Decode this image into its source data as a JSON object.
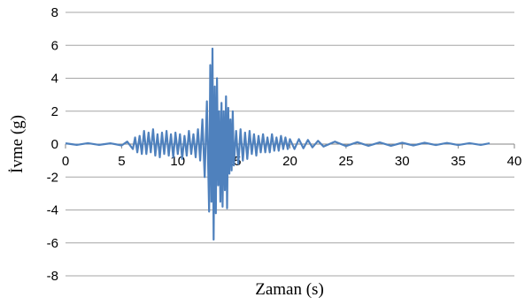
{
  "chart_data": {
    "type": "line",
    "title": "",
    "xlabel": "Zaman (s)",
    "ylabel": "İvme (g)",
    "xlim": [
      0,
      40
    ],
    "ylim": [
      -8,
      8
    ],
    "xticks": [
      0,
      5,
      10,
      15,
      20,
      25,
      30,
      35,
      40
    ],
    "yticks": [
      -8,
      -6,
      -4,
      -2,
      0,
      2,
      4,
      6,
      8
    ],
    "xtick_labels": [
      "0",
      "5",
      "10",
      "15",
      "20",
      "25",
      "30",
      "35",
      "40"
    ],
    "ytick_labels": [
      "-8",
      "-6",
      "-4",
      "-2",
      "0",
      "2",
      "4",
      "6",
      "8"
    ],
    "grid": "horizontal",
    "legend": "none",
    "series": [
      {
        "color": "#4F81BD",
        "x": [
          0,
          1,
          2,
          3,
          4,
          5,
          5.5,
          6,
          6.2,
          6.4,
          6.6,
          6.8,
          7.0,
          7.2,
          7.4,
          7.6,
          7.8,
          8.0,
          8.2,
          8.4,
          8.6,
          8.8,
          9.0,
          9.2,
          9.4,
          9.6,
          9.8,
          10.0,
          10.2,
          10.4,
          10.6,
          10.8,
          11.0,
          11.2,
          11.4,
          11.6,
          11.8,
          12.0,
          12.2,
          12.4,
          12.6,
          12.8,
          12.9,
          13.0,
          13.1,
          13.2,
          13.3,
          13.4,
          13.5,
          13.6,
          13.7,
          13.8,
          13.9,
          14.0,
          14.1,
          14.2,
          14.3,
          14.4,
          14.5,
          14.6,
          14.7,
          14.8,
          14.9,
          15.0,
          15.2,
          15.4,
          15.6,
          15.8,
          16.0,
          16.2,
          16.4,
          16.6,
          16.8,
          17.0,
          17.2,
          17.4,
          17.6,
          17.8,
          18.0,
          18.2,
          18.4,
          18.6,
          18.8,
          19.0,
          19.2,
          19.4,
          19.6,
          19.8,
          20.0,
          20.4,
          20.8,
          21.2,
          21.6,
          22.0,
          22.5,
          23,
          24,
          25,
          26,
          27,
          28,
          29,
          30,
          31,
          32,
          33,
          34,
          35,
          36,
          37,
          37.8
        ],
        "y": [
          0.05,
          -0.05,
          0.06,
          -0.05,
          0.05,
          -0.08,
          0.15,
          -0.3,
          0.4,
          -0.5,
          0.5,
          -0.6,
          0.8,
          -0.6,
          0.7,
          -0.5,
          0.9,
          -0.7,
          0.6,
          -0.8,
          0.7,
          -0.6,
          0.8,
          -0.7,
          0.6,
          -0.8,
          0.7,
          -0.6,
          0.6,
          -0.9,
          0.5,
          -0.7,
          0.8,
          -0.6,
          0.6,
          -0.8,
          0.9,
          -1.0,
          1.5,
          -2.0,
          2.6,
          -4.1,
          4.8,
          -3.5,
          5.8,
          -5.8,
          3.5,
          -4.2,
          4.0,
          -2.5,
          2.0,
          -3.5,
          2.5,
          -3.8,
          2.0,
          -2.8,
          2.9,
          -3.9,
          2.2,
          -1.8,
          1.5,
          -1.6,
          2.0,
          -1.3,
          0.8,
          -1.2,
          0.9,
          -1.0,
          0.7,
          -0.9,
          0.8,
          -0.6,
          0.6,
          -0.7,
          0.5,
          -0.5,
          0.6,
          -0.5,
          0.4,
          -0.5,
          0.6,
          -0.4,
          0.4,
          -0.4,
          0.5,
          -0.3,
          0.4,
          -0.3,
          0.3,
          -0.3,
          0.3,
          -0.25,
          0.25,
          -0.2,
          0.2,
          -0.15,
          0.15,
          -0.12,
          0.12,
          -0.1,
          0.1,
          -0.1,
          0.08,
          -0.08,
          0.08,
          -0.06,
          0.07,
          -0.06,
          0.06,
          -0.05,
          0.05
        ]
      }
    ]
  }
}
